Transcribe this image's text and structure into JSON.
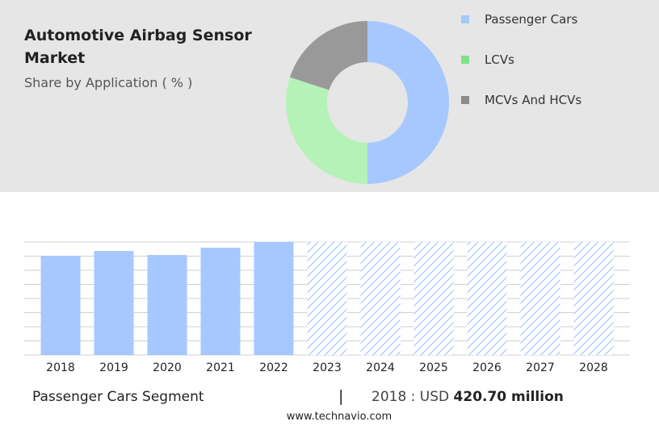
{
  "chart_data": [
    {
      "type": "pie",
      "title": "Automotive Airbag Sensor Market",
      "subtitle": "Share by Application ( % )",
      "categories": [
        "Passenger Cars",
        "LCVs",
        "MCVs And HCVs"
      ],
      "values": [
        50,
        30,
        20
      ],
      "colors": [
        "#a6c8ff",
        "#b5f2b8",
        "#999999"
      ],
      "legend_colors": [
        "#a6c8ff",
        "#7ee28a",
        "#8c8c8c"
      ],
      "donut": true
    },
    {
      "type": "bar",
      "categories": [
        "2018",
        "2019",
        "2020",
        "2021",
        "2022",
        "2023",
        "2024",
        "2025",
        "2026",
        "2027",
        "2028"
      ],
      "values": [
        420.7,
        441,
        424,
        455,
        479,
        null,
        null,
        null,
        null,
        null,
        null
      ],
      "value_labels": [
        "420.70 million",
        null,
        null,
        null,
        null,
        null,
        null,
        null,
        null,
        null,
        null
      ],
      "color": "#a6c8ff",
      "forecast_color": "#a6c8ff",
      "ylim": [
        0,
        479
      ],
      "grid": true,
      "footer_segment": "Passenger Cars Segment",
      "footer_prefix": "2018 : USD",
      "source": "www.technavio.com"
    }
  ]
}
